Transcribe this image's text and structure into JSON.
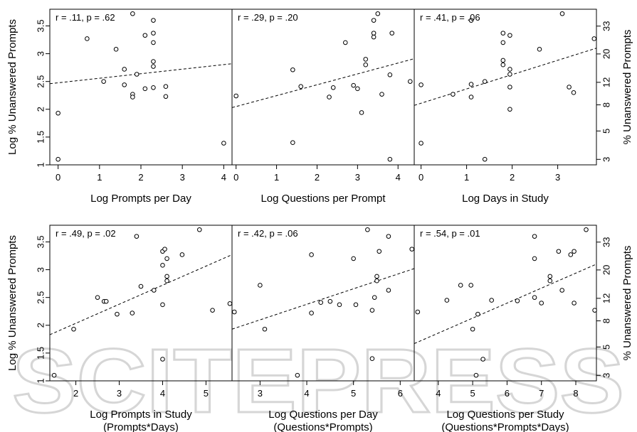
{
  "watermark": {
    "text": "SCITEPRESS"
  },
  "shared": {
    "ylabel_left": "Log % Unanswered Prompts",
    "ylabel_right": "% Unanswered Prompts",
    "ylim": [
      1.0,
      3.8
    ],
    "yticks": [
      1.0,
      1.5,
      2.0,
      2.5,
      3.0,
      3.5
    ],
    "yticks_right": [
      3,
      5,
      8,
      12,
      20,
      33
    ]
  },
  "chart_data": [
    {
      "type": "scatter",
      "annotation": "r = .11, p = .62",
      "xlabel": "Log Prompts per Day",
      "xlabel2": "",
      "xlim": [
        -0.2,
        4.2
      ],
      "xticks": [
        0,
        1,
        2,
        3,
        4
      ],
      "fit": {
        "x": [
          -0.2,
          4.2
        ],
        "y": [
          2.46,
          2.82
        ]
      },
      "points": [
        [
          0.0,
          1.1
        ],
        [
          0.0,
          1.93
        ],
        [
          0.7,
          3.27
        ],
        [
          1.1,
          2.5
        ],
        [
          1.4,
          3.08
        ],
        [
          1.6,
          2.72
        ],
        [
          1.6,
          2.44
        ],
        [
          1.8,
          2.27
        ],
        [
          1.8,
          2.22
        ],
        [
          1.8,
          3.72
        ],
        [
          1.9,
          2.63
        ],
        [
          2.1,
          3.33
        ],
        [
          2.1,
          2.37
        ],
        [
          2.3,
          2.39
        ],
        [
          2.3,
          2.77
        ],
        [
          2.3,
          2.86
        ],
        [
          2.3,
          3.2
        ],
        [
          2.3,
          3.37
        ],
        [
          2.3,
          3.6
        ],
        [
          2.6,
          2.23
        ],
        [
          2.6,
          2.41
        ],
        [
          4.0,
          1.39
        ]
      ]
    },
    {
      "type": "scatter",
      "annotation": "r = .29, p = .20",
      "xlabel": "Log Questions per Prompt",
      "xlabel2": "",
      "xlim": [
        -0.1,
        4.4
      ],
      "xticks": [
        0,
        1,
        2,
        3,
        4
      ],
      "fit": {
        "x": [
          -0.1,
          4.4
        ],
        "y": [
          2.03,
          2.91
        ]
      },
      "points": [
        [
          0.0,
          2.24
        ],
        [
          1.4,
          1.4
        ],
        [
          1.4,
          2.71
        ],
        [
          1.6,
          2.41
        ],
        [
          2.3,
          2.22
        ],
        [
          2.4,
          2.39
        ],
        [
          2.7,
          3.2
        ],
        [
          2.9,
          2.43
        ],
        [
          3.0,
          2.37
        ],
        [
          3.1,
          1.94
        ],
        [
          3.2,
          2.8
        ],
        [
          3.2,
          2.9
        ],
        [
          3.4,
          3.3
        ],
        [
          3.4,
          3.37
        ],
        [
          3.4,
          3.6
        ],
        [
          3.5,
          3.72
        ],
        [
          3.6,
          2.27
        ],
        [
          3.8,
          1.1
        ],
        [
          3.8,
          2.62
        ],
        [
          3.85,
          3.37
        ],
        [
          4.3,
          2.5
        ]
      ]
    },
    {
      "type": "scatter",
      "annotation": "r = .41, p = .06",
      "xlabel": "Log Days in Study",
      "xlabel2": "",
      "xlim": [
        -0.15,
        3.85
      ],
      "xticks": [
        0,
        1,
        2,
        3
      ],
      "fit": {
        "x": [
          -0.15,
          3.85
        ],
        "y": [
          2.07,
          3.1
        ]
      },
      "points": [
        [
          0.0,
          1.39
        ],
        [
          0.0,
          2.44
        ],
        [
          0.7,
          2.27
        ],
        [
          1.1,
          2.22
        ],
        [
          1.1,
          2.45
        ],
        [
          1.1,
          3.6
        ],
        [
          1.4,
          1.1
        ],
        [
          1.4,
          2.5
        ],
        [
          1.8,
          2.8
        ],
        [
          1.8,
          2.88
        ],
        [
          1.8,
          3.2
        ],
        [
          1.8,
          3.37
        ],
        [
          1.95,
          2.0
        ],
        [
          1.95,
          2.4
        ],
        [
          1.95,
          2.63
        ],
        [
          1.95,
          2.72
        ],
        [
          1.95,
          3.33
        ],
        [
          2.6,
          3.08
        ],
        [
          3.1,
          3.72
        ],
        [
          3.25,
          2.4
        ],
        [
          3.35,
          2.3
        ],
        [
          3.8,
          3.27
        ]
      ]
    },
    {
      "type": "scatter",
      "annotation": "r = .49, p = .02",
      "xlabel": "Log Prompts in Study",
      "xlabel2": "(Prompts*Days)",
      "xlim": [
        1.4,
        5.6
      ],
      "xticks": [
        2,
        3,
        4,
        5
      ],
      "fit": {
        "x": [
          1.4,
          5.6
        ],
        "y": [
          1.83,
          3.27
        ]
      },
      "points": [
        [
          1.5,
          1.1
        ],
        [
          1.95,
          1.93
        ],
        [
          2.5,
          2.5
        ],
        [
          2.65,
          2.43
        ],
        [
          2.7,
          2.43
        ],
        [
          2.95,
          2.2
        ],
        [
          3.3,
          2.22
        ],
        [
          3.4,
          3.6
        ],
        [
          3.5,
          2.7
        ],
        [
          3.8,
          2.63
        ],
        [
          4.0,
          1.39
        ],
        [
          4.0,
          2.37
        ],
        [
          4.0,
          3.08
        ],
        [
          4.0,
          3.33
        ],
        [
          4.05,
          3.37
        ],
        [
          4.1,
          2.8
        ],
        [
          4.1,
          2.88
        ],
        [
          4.1,
          3.2
        ],
        [
          4.45,
          3.27
        ],
        [
          4.85,
          3.72
        ],
        [
          5.15,
          2.27
        ],
        [
          5.55,
          2.39
        ]
      ]
    },
    {
      "type": "scatter",
      "annotation": "r = .42, p = .06",
      "xlabel": "Log Questions per Day",
      "xlabel2": "(Questions*Prompts)",
      "xlim": [
        2.4,
        6.3
      ],
      "xticks": [
        3,
        4,
        5,
        6
      ],
      "fit": {
        "x": [
          2.4,
          6.3
        ],
        "y": [
          1.93,
          3.02
        ]
      },
      "points": [
        [
          2.45,
          2.24
        ],
        [
          3.0,
          2.72
        ],
        [
          3.1,
          1.93
        ],
        [
          3.8,
          1.1
        ],
        [
          4.1,
          2.22
        ],
        [
          4.1,
          3.27
        ],
        [
          4.3,
          2.41
        ],
        [
          4.5,
          2.43
        ],
        [
          4.7,
          2.37
        ],
        [
          5.0,
          3.2
        ],
        [
          5.05,
          2.37
        ],
        [
          5.3,
          3.72
        ],
        [
          5.4,
          1.4
        ],
        [
          5.4,
          2.27
        ],
        [
          5.45,
          2.5
        ],
        [
          5.5,
          2.8
        ],
        [
          5.5,
          2.88
        ],
        [
          5.55,
          3.33
        ],
        [
          5.75,
          2.63
        ],
        [
          5.75,
          3.6
        ],
        [
          6.25,
          3.37
        ]
      ]
    },
    {
      "type": "scatter",
      "annotation": "r = .54, p = .01",
      "xlabel": "Log Questions per Study",
      "xlabel2": "(Questions*Prompts*Days)",
      "xlim": [
        3.3,
        8.6
      ],
      "xticks": [
        4,
        5,
        6,
        7,
        8
      ],
      "fit": {
        "x": [
          3.3,
          8.6
        ],
        "y": [
          1.67,
          3.1
        ]
      },
      "points": [
        [
          3.4,
          2.24
        ],
        [
          4.25,
          2.45
        ],
        [
          4.65,
          2.72
        ],
        [
          4.95,
          2.72
        ],
        [
          5.0,
          1.93
        ],
        [
          5.1,
          1.1
        ],
        [
          5.15,
          2.2
        ],
        [
          5.3,
          1.39
        ],
        [
          5.55,
          2.45
        ],
        [
          6.3,
          2.44
        ],
        [
          6.8,
          2.5
        ],
        [
          6.8,
          3.2
        ],
        [
          6.8,
          3.6
        ],
        [
          7.0,
          2.4
        ],
        [
          7.25,
          2.8
        ],
        [
          7.25,
          2.88
        ],
        [
          7.5,
          3.33
        ],
        [
          7.6,
          2.63
        ],
        [
          7.85,
          3.27
        ],
        [
          7.95,
          3.33
        ],
        [
          7.95,
          2.4
        ],
        [
          8.3,
          3.72
        ],
        [
          8.55,
          2.27
        ]
      ]
    }
  ]
}
